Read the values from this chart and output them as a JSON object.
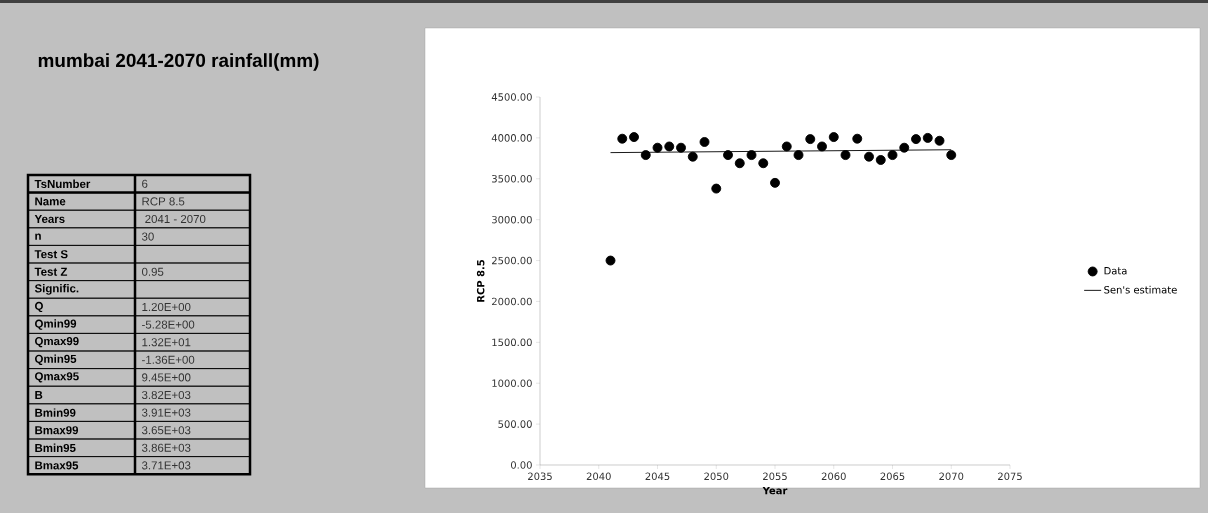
{
  "chart_data": [
    {
      "type": "other",
      "title": "mumbai 2041-2070 rainfall(mm)",
      "categories": [
        "TsNumber",
        "Name",
        "Years",
        "n",
        "Test S",
        "Test Z",
        "Signific.",
        "Q",
        "Qmin99",
        "Qmax99",
        "Qmin95",
        "Qmax95",
        "B",
        "Bmin99",
        "Bmax99",
        "Bmin95",
        "Bmax95"
      ],
      "value_labels": [
        "6",
        "RCP 8.5",
        " 2041 -  2070",
        "30",
        null,
        "0.95",
        null,
        "1.20E+00",
        "-5.28E+00",
        "1.32E+01",
        "-1.36E+00",
        "9.45E+00",
        "3.82E+03",
        "3.91E+03",
        "3.65E+03",
        "3.86E+03",
        "3.71E+03"
      ]
    },
    {
      "type": "scatter",
      "xlabel": "Year",
      "ylabel": "RCP 8.5",
      "xlim": [
        2035,
        2075
      ],
      "xticks": [
        2035,
        2040,
        2045,
        2050,
        2055,
        2060,
        2065,
        2070,
        2075
      ],
      "ylim": [
        0,
        4500
      ],
      "yticks": [
        {
          "value": 0,
          "label": "0.00"
        },
        {
          "value": 500,
          "label": "500.00"
        },
        {
          "value": 1000,
          "label": "1000.00"
        },
        {
          "value": 1500,
          "label": "1500.00"
        },
        {
          "value": 2000,
          "label": "2000.00"
        },
        {
          "value": 2500,
          "label": "2500.00"
        },
        {
          "value": 3000,
          "label": "3000.00"
        },
        {
          "value": 3500,
          "label": "3500.00"
        },
        {
          "value": 4000,
          "label": "4000.00"
        },
        {
          "value": 4500,
          "label": "4500.00"
        }
      ],
      "legend": "right",
      "series": [
        {
          "name": "Data",
          "type": "scatter",
          "marker": "circle",
          "color": "#000000",
          "x": [
            2041,
            2042,
            2043,
            2044,
            2045,
            2046,
            2047,
            2048,
            2049,
            2050,
            2051,
            2052,
            2053,
            2054,
            2055,
            2056,
            2057,
            2058,
            2059,
            2060,
            2061,
            2062,
            2063,
            2064,
            2065,
            2066,
            2067,
            2068,
            2069,
            2070
          ],
          "values": [
            2500,
            3990,
            4010,
            3790,
            3880,
            3895,
            3880,
            3770,
            3950,
            3380,
            3790,
            3690,
            3790,
            3690,
            3450,
            3895,
            3790,
            3985,
            3895,
            4010,
            3790,
            3990,
            3770,
            3730,
            3790,
            3880,
            3985,
            4000,
            3965,
            3790
          ]
        },
        {
          "name": "Sen's estimate",
          "type": "line",
          "marker": "none",
          "color": "#000000",
          "x": [
            2041,
            2070
          ],
          "values": [
            3820,
            3855
          ]
        }
      ]
    }
  ]
}
